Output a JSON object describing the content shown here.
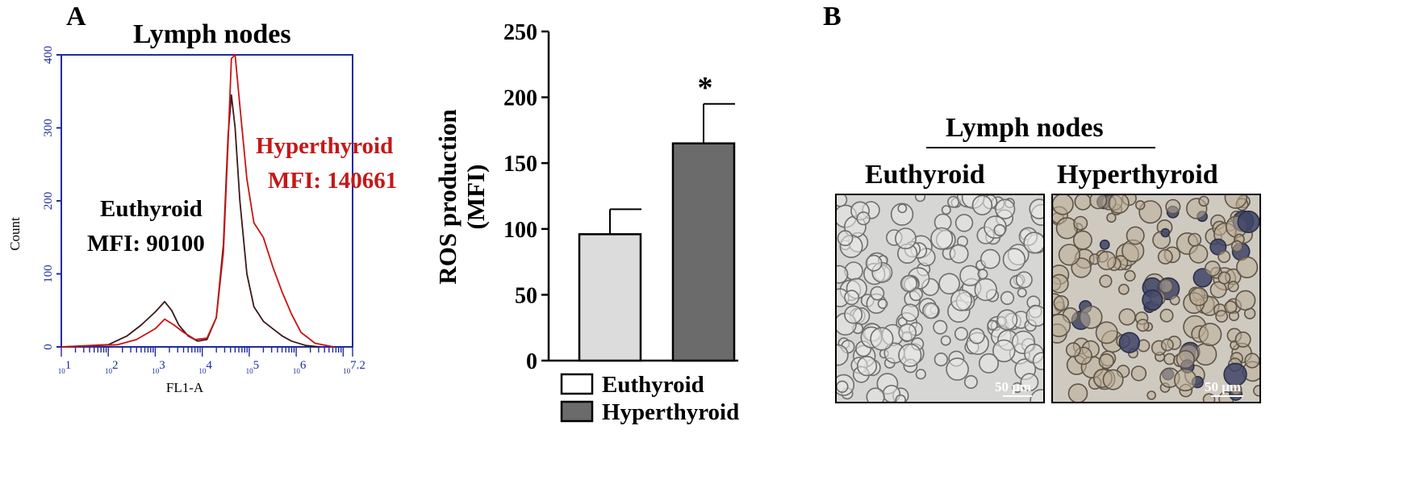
{
  "panel_a_label": "A",
  "panel_b_label": "B",
  "chart_data": [
    {
      "type": "line",
      "title": "Lymph nodes",
      "xlabel": "FL1-A",
      "ylabel": "Count",
      "x_scale": "log",
      "xlim": [
        1,
        7.2
      ],
      "ylim": [
        0,
        400
      ],
      "y_ticks": [
        0,
        100,
        200,
        300,
        400
      ],
      "x_tick_labels": [
        "10^1",
        "10^2",
        "10^3",
        "10^4",
        "10^5",
        "10^6",
        "10^7.2"
      ],
      "series": [
        {
          "name": "Euthyroid",
          "color": "#3a1a1a",
          "x": [
            1,
            2.0,
            2.4,
            2.7,
            3.0,
            3.2,
            3.35,
            3.5,
            3.7,
            3.9,
            4.1,
            4.3,
            4.45,
            4.55,
            4.62,
            4.7,
            4.8,
            4.95,
            5.1,
            5.3,
            5.5,
            5.7,
            5.9,
            6.2,
            6.5
          ],
          "y": [
            0,
            3,
            15,
            30,
            48,
            62,
            50,
            30,
            15,
            8,
            10,
            40,
            140,
            290,
            345,
            300,
            200,
            100,
            55,
            35,
            25,
            15,
            8,
            2,
            0
          ]
        },
        {
          "name": "Hyperthyroid",
          "color": "#cc1111",
          "x": [
            1,
            2.2,
            2.6,
            3.0,
            3.2,
            3.4,
            3.6,
            3.85,
            4.1,
            4.3,
            4.45,
            4.55,
            4.62,
            4.7,
            4.8,
            4.95,
            5.1,
            5.3,
            5.5,
            5.7,
            5.9,
            6.1,
            6.4,
            6.8
          ],
          "y": [
            0,
            3,
            10,
            25,
            38,
            30,
            20,
            10,
            12,
            40,
            130,
            280,
            395,
            400,
            330,
            230,
            170,
            150,
            110,
            75,
            45,
            20,
            5,
            0
          ]
        }
      ],
      "annotations": {
        "hyper_name": "Hyperthyroid",
        "hyper_mfi": "MFI: 140661",
        "eu_name": "Euthyroid",
        "eu_mfi": "MFI: 90100"
      }
    },
    {
      "type": "bar",
      "categories": [
        "Euthyroid",
        "Hyperthyroid"
      ],
      "values": [
        96,
        165
      ],
      "errors": [
        19,
        30
      ],
      "colors": [
        "#dcdcdc",
        "#6b6b6b"
      ],
      "ylabel_line1": "ROS production",
      "ylabel_line2": "(MFI)",
      "ylim": [
        0,
        250
      ],
      "y_ticks": [
        0,
        50,
        100,
        150,
        200,
        250
      ],
      "significance": "*",
      "legend": [
        "Euthyroid",
        "Hyperthyroid"
      ]
    }
  ],
  "panel_b": {
    "header": "Lymph nodes",
    "left_label": "Euthyroid",
    "right_label": "Hyperthyroid",
    "scale_bar": "50 μm"
  }
}
